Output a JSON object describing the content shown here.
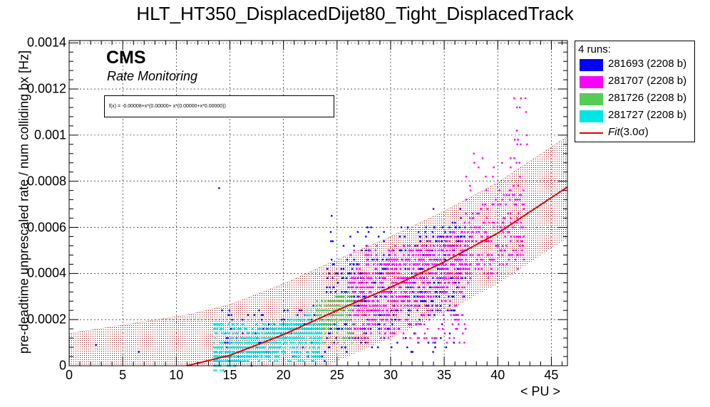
{
  "chart_data": {
    "type": "scatter",
    "title": "HLT_HT350_DisplacedDijet80_Tight_DisplacedTrack",
    "xlabel": "< PU >",
    "ylabel": "pre-deadtime unprescaled rate / num colliding bx [Hz]",
    "xlim": [
      0,
      46.5
    ],
    "ylim": [
      0,
      0.00141
    ],
    "x_ticks": [
      "0",
      "5",
      "10",
      "15",
      "20",
      "25",
      "30",
      "35",
      "40",
      "45"
    ],
    "y_ticks": [
      "0",
      "0.0002",
      "0.0004",
      "0.0006",
      "0.0008",
      "0.001",
      "0.0012",
      "0.0014"
    ],
    "grid": true,
    "legend_position": "outside-top-right",
    "legend_header": "4 runs:",
    "cms_label": "CMS",
    "cms_sublabel": "Rate Monitoring",
    "fit_formula_text": "f(x) = -0.00008+x*(0.00000+ x*(0.00000+x*0.00000))",
    "fit": {
      "label_prefix": "Fit",
      "label_suffix": "(3.0σ)",
      "color": "#e00000",
      "band_color": "#8b0000",
      "band_halfwidth": 0.00022,
      "x_start": 11.0,
      "x_end": 46.5,
      "points": [
        [
          11,
          0.0
        ],
        [
          15,
          4.5e-05
        ],
        [
          20,
          0.000135
        ],
        [
          25,
          0.00024
        ],
        [
          30,
          0.00034
        ],
        [
          35,
          0.00045
        ],
        [
          40,
          0.000575
        ],
        [
          46.5,
          0.000775
        ]
      ]
    },
    "series": [
      {
        "name": "281693 (2208 b)",
        "color": "#0000ff",
        "clusters": [
          {
            "x": [
              24,
              37
            ],
            "y": [
              6e-05,
              0.00062
            ],
            "n": 500
          },
          {
            "x": [
              14,
              24
            ],
            "y": [
              0.0,
              0.00025
            ],
            "n": 140
          }
        ],
        "outliers": [
          [
            2.5,
            9e-05
          ],
          [
            6.5,
            6e-05
          ],
          [
            14,
            0.00077
          ],
          [
            24.5,
            0.00065
          ],
          [
            34,
            0.00068
          ],
          [
            36.5,
            0.00068
          ]
        ]
      },
      {
        "name": "281707 (2208 b)",
        "color": "#ff00ff",
        "clusters": [
          {
            "x": [
              26,
              37
            ],
            "y": [
              0.0001,
              0.00052
            ],
            "n": 800
          },
          {
            "x": [
              37,
              42.5
            ],
            "y": [
              0.00038,
              0.00092
            ],
            "n": 220
          },
          {
            "x": [
              41.5,
              42.8
            ],
            "y": [
              0.00095,
              0.00119
            ],
            "n": 14
          }
        ],
        "outliers": []
      },
      {
        "name": "281726 (2208 b)",
        "color": "#55cc55",
        "clusters": [
          {
            "x": [
              23,
              26.5
            ],
            "y": [
              0.0001,
              0.00029
            ],
            "n": 300
          }
        ],
        "outliers": []
      },
      {
        "name": "281727 (2208 b)",
        "color": "#00e5e5",
        "clusters": [
          {
            "x": [
              13.5,
              23.5
            ],
            "y": [
              2e-05,
              0.00019
            ],
            "n": 900
          }
        ],
        "outliers": []
      }
    ]
  }
}
